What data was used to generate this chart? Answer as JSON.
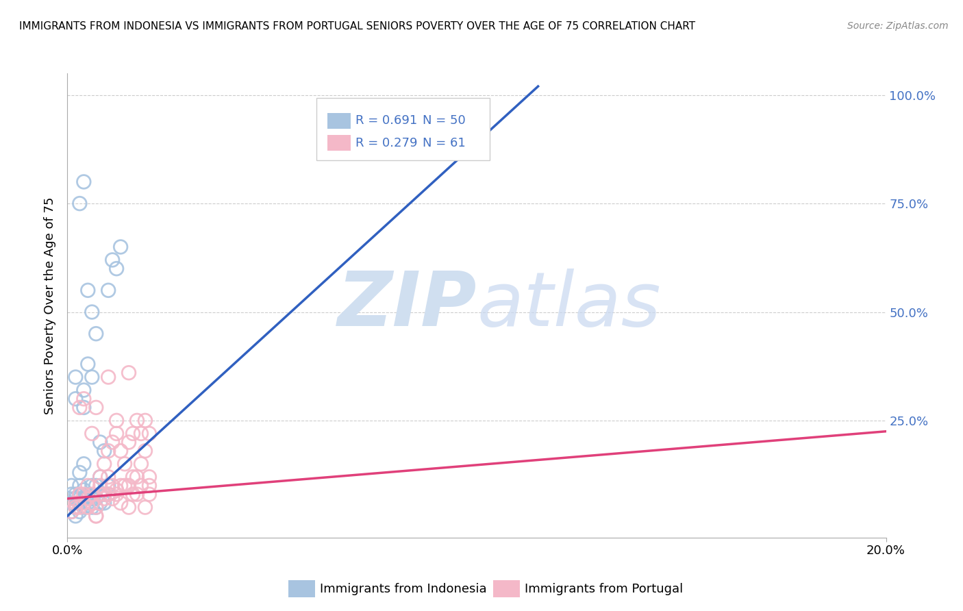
{
  "title": "IMMIGRANTS FROM INDONESIA VS IMMIGRANTS FROM PORTUGAL SENIORS POVERTY OVER THE AGE OF 75 CORRELATION CHART",
  "source": "Source: ZipAtlas.com",
  "ylabel": "Seniors Poverty Over the Age of 75",
  "xlim": [
    0.0,
    0.2
  ],
  "ylim": [
    -0.02,
    1.05
  ],
  "yticks": [
    0.0,
    0.25,
    0.5,
    0.75,
    1.0
  ],
  "indonesia_color": "#a8c4e0",
  "portugal_color": "#f4b8c8",
  "indonesia_line_color": "#3060c0",
  "portugal_line_color": "#e0407a",
  "indonesia_R": 0.691,
  "indonesia_N": 50,
  "portugal_R": 0.279,
  "portugal_N": 61,
  "legend_R_color": "#4472c4",
  "watermark_color": "#d0dff0",
  "indonesia_scatter_x": [
    0.001,
    0.001,
    0.001,
    0.001,
    0.002,
    0.002,
    0.002,
    0.002,
    0.002,
    0.002,
    0.003,
    0.003,
    0.003,
    0.003,
    0.003,
    0.003,
    0.004,
    0.004,
    0.004,
    0.004,
    0.004,
    0.004,
    0.005,
    0.005,
    0.005,
    0.006,
    0.006,
    0.006,
    0.006,
    0.007,
    0.007,
    0.007,
    0.008,
    0.008,
    0.008,
    0.009,
    0.009,
    0.01,
    0.01,
    0.011,
    0.012,
    0.013,
    0.003,
    0.004,
    0.005,
    0.006,
    0.007,
    0.008,
    0.009,
    0.01
  ],
  "indonesia_scatter_y": [
    0.04,
    0.06,
    0.08,
    0.1,
    0.03,
    0.05,
    0.07,
    0.08,
    0.3,
    0.35,
    0.04,
    0.06,
    0.07,
    0.08,
    0.1,
    0.13,
    0.05,
    0.07,
    0.09,
    0.15,
    0.28,
    0.32,
    0.06,
    0.08,
    0.38,
    0.05,
    0.07,
    0.1,
    0.35,
    0.05,
    0.07,
    0.1,
    0.06,
    0.08,
    0.12,
    0.06,
    0.08,
    0.08,
    0.55,
    0.62,
    0.6,
    0.65,
    0.75,
    0.8,
    0.55,
    0.5,
    0.45,
    0.2,
    0.18,
    0.1
  ],
  "portugal_scatter_x": [
    0.001,
    0.002,
    0.003,
    0.003,
    0.004,
    0.004,
    0.005,
    0.005,
    0.006,
    0.006,
    0.007,
    0.007,
    0.008,
    0.008,
    0.009,
    0.009,
    0.01,
    0.01,
    0.011,
    0.011,
    0.012,
    0.012,
    0.013,
    0.013,
    0.014,
    0.015,
    0.015,
    0.016,
    0.016,
    0.017,
    0.017,
    0.018,
    0.018,
    0.019,
    0.019,
    0.02,
    0.02,
    0.002,
    0.003,
    0.004,
    0.005,
    0.006,
    0.007,
    0.008,
    0.009,
    0.01,
    0.011,
    0.012,
    0.013,
    0.014,
    0.015,
    0.016,
    0.017,
    0.018,
    0.02,
    0.015,
    0.01,
    0.007,
    0.012,
    0.019,
    0.02
  ],
  "portugal_scatter_y": [
    0.04,
    0.06,
    0.05,
    0.28,
    0.08,
    0.3,
    0.07,
    0.1,
    0.06,
    0.22,
    0.05,
    0.28,
    0.08,
    0.12,
    0.07,
    0.15,
    0.08,
    0.18,
    0.07,
    0.2,
    0.09,
    0.22,
    0.1,
    0.18,
    0.15,
    0.1,
    0.2,
    0.12,
    0.22,
    0.12,
    0.25,
    0.15,
    0.22,
    0.18,
    0.25,
    0.1,
    0.22,
    0.05,
    0.08,
    0.06,
    0.05,
    0.08,
    0.03,
    0.1,
    0.08,
    0.12,
    0.1,
    0.08,
    0.06,
    0.1,
    0.05,
    0.08,
    0.08,
    0.1,
    0.12,
    0.36,
    0.35,
    0.03,
    0.25,
    0.05,
    0.08
  ],
  "indo_line_x0": 0.0,
  "indo_line_y0": 0.03,
  "indo_line_x1": 0.115,
  "indo_line_y1": 1.02,
  "port_line_x0": 0.0,
  "port_line_y0": 0.07,
  "port_line_x1": 0.2,
  "port_line_y1": 0.225
}
